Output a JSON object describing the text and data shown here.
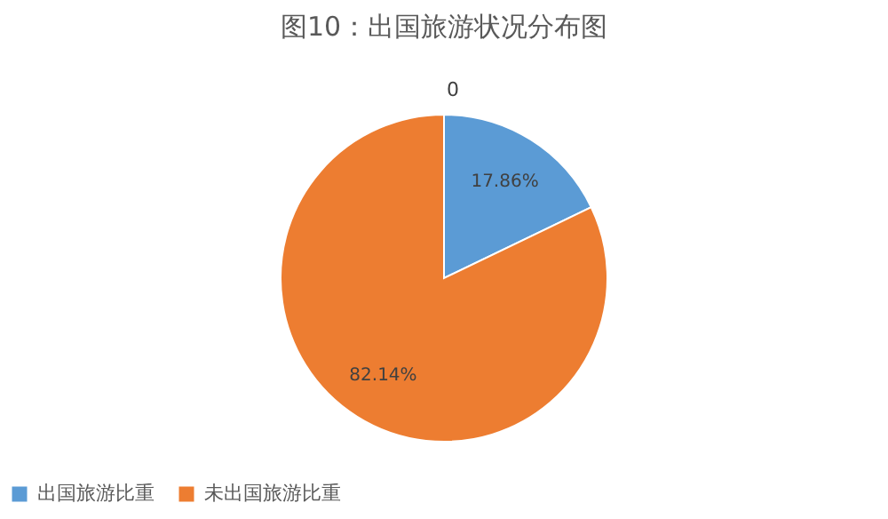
{
  "chart_data": {
    "type": "pie",
    "title": "图10：出国旅游状况分布图",
    "categories": [
      "出国旅游比重",
      "未出国旅游比重"
    ],
    "values": [
      17.86,
      82.14
    ],
    "colors": [
      "#5b9bd5",
      "#ed7d31"
    ],
    "value_labels": [
      "17.86%",
      "82.14%"
    ],
    "annotations": [
      "0"
    ],
    "legend": "bottom"
  }
}
